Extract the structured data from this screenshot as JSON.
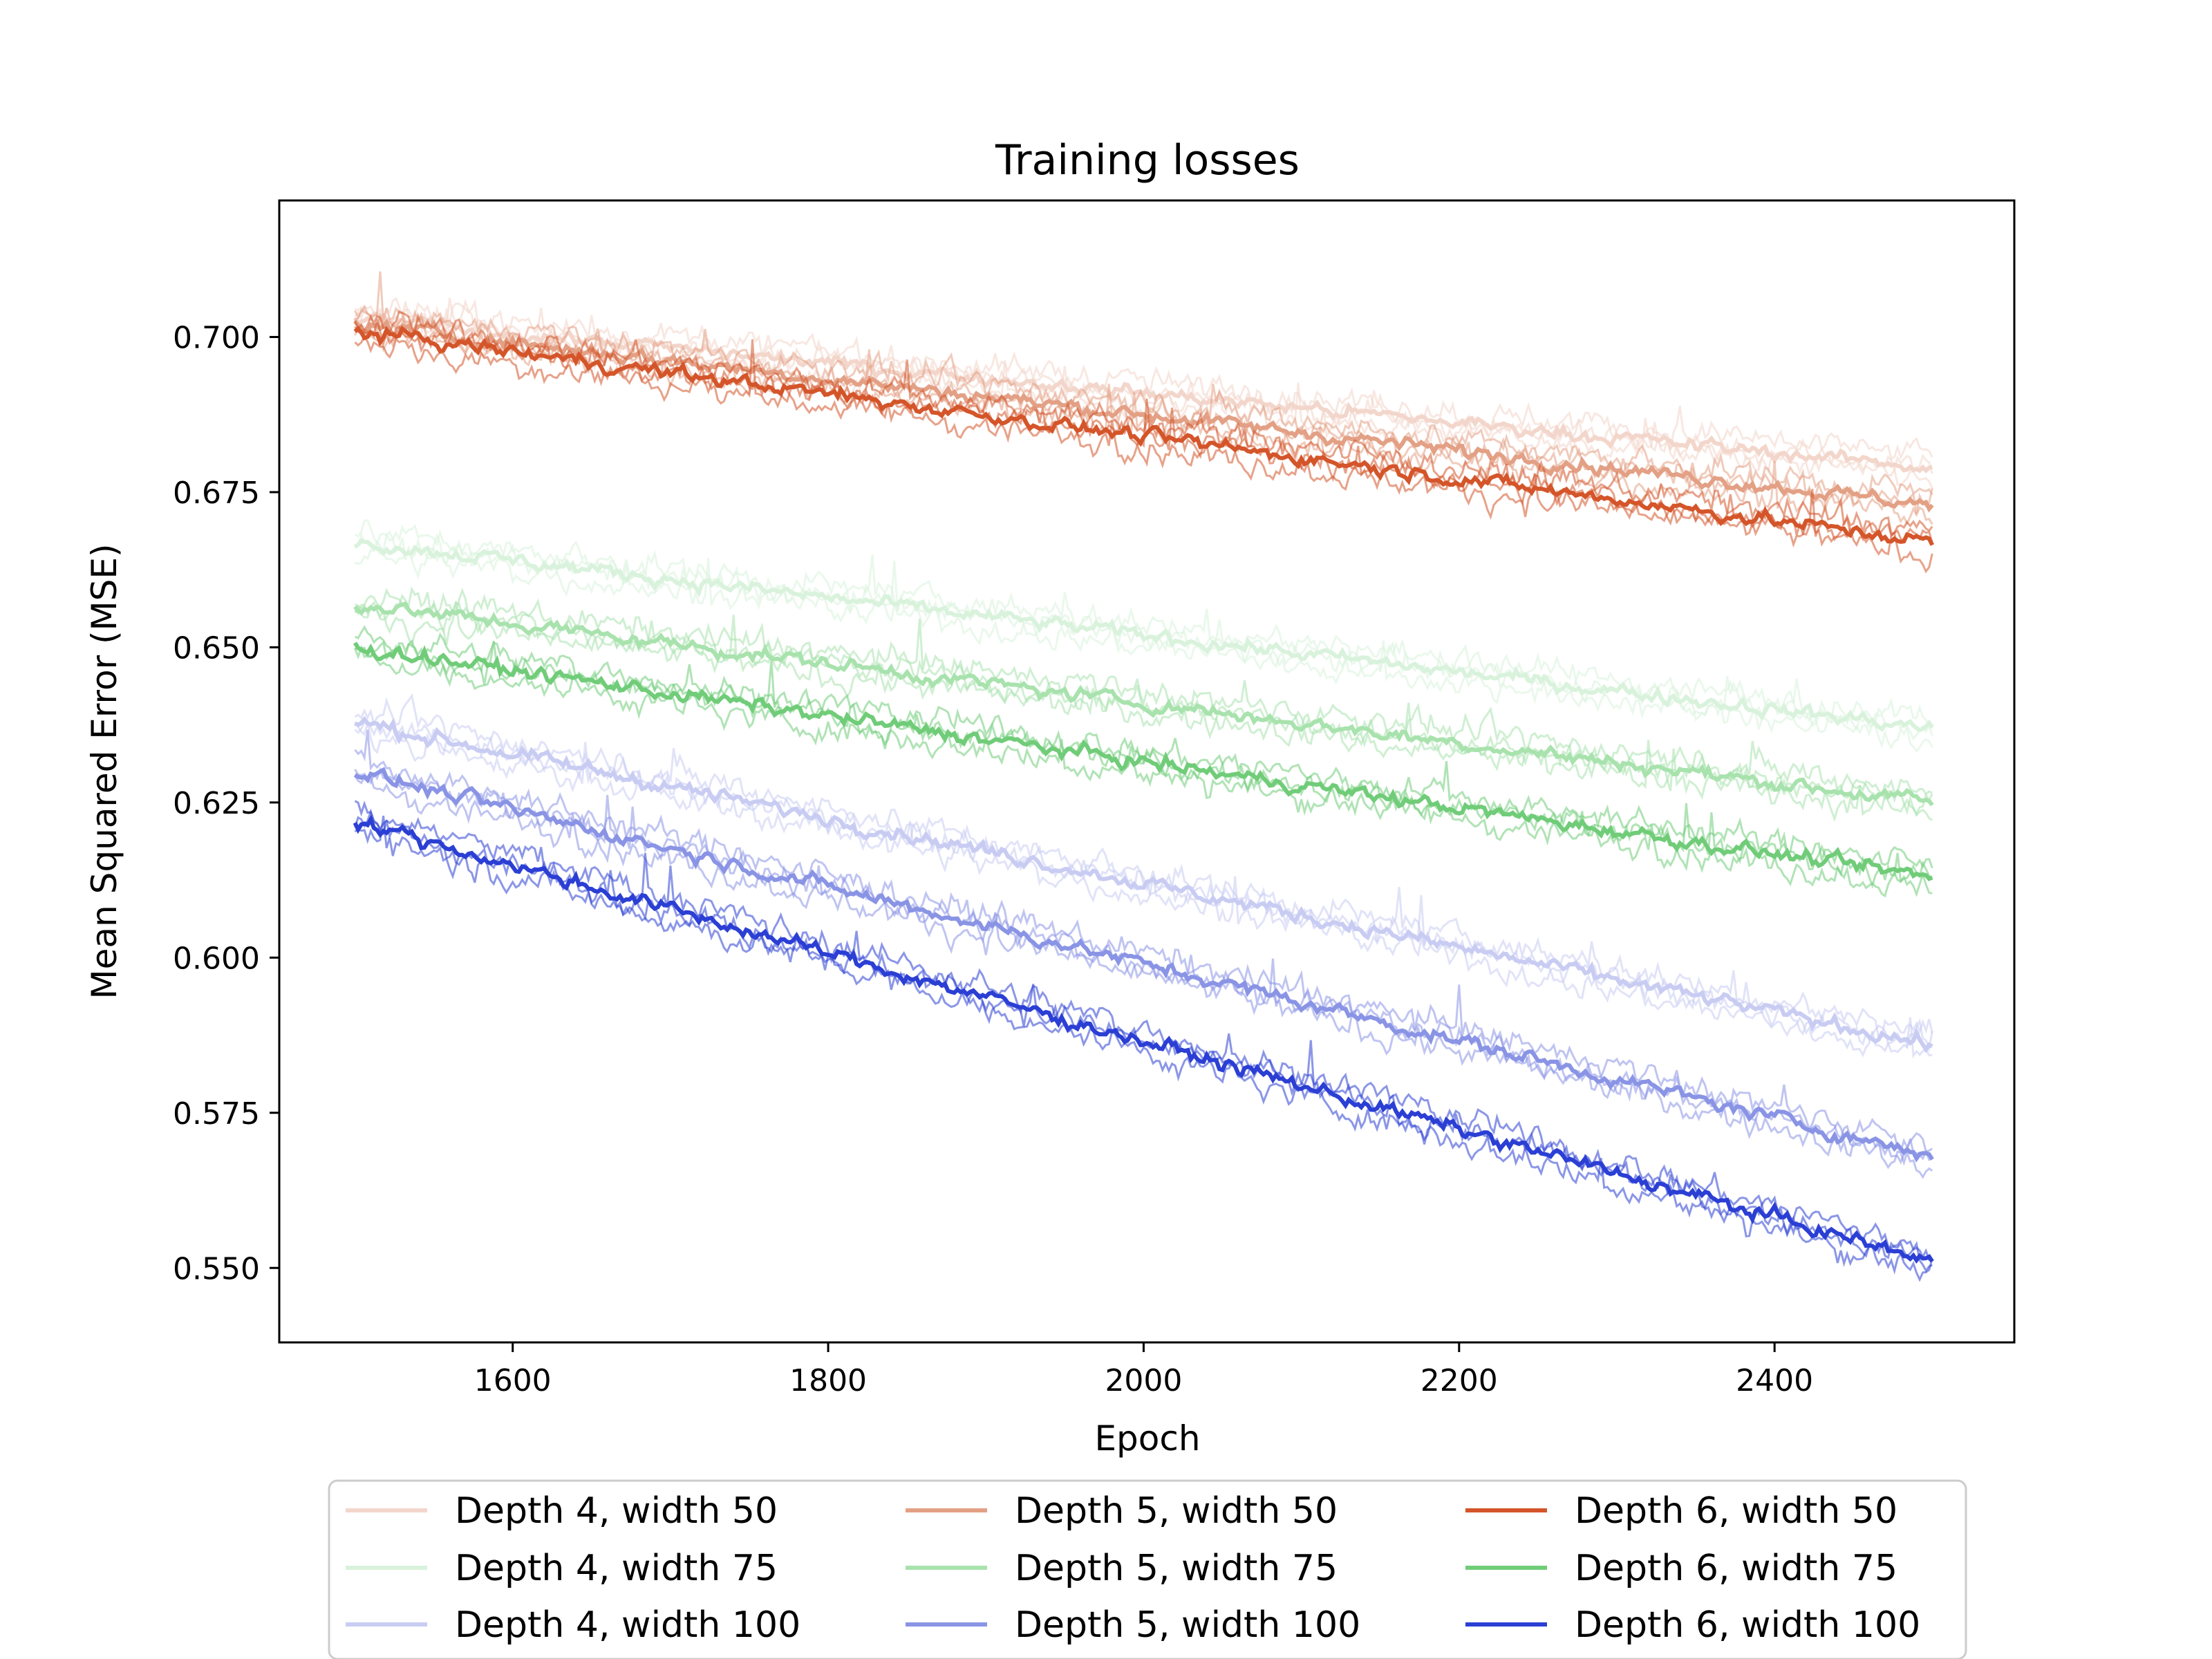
{
  "chart_data": {
    "type": "line",
    "title": "Training losses",
    "xlabel": "Epoch",
    "ylabel": "Mean Squared Error (MSE)",
    "xlim": [
      1452,
      2552
    ],
    "ylim": [
      0.538,
      0.722
    ],
    "xticks": [
      1600,
      1800,
      2000,
      2200,
      2400
    ],
    "yticks": [
      0.55,
      0.575,
      0.6,
      0.625,
      0.65,
      0.675,
      0.7
    ],
    "ytick_labels": [
      "0.550",
      "0.575",
      "0.600",
      "0.625",
      "0.650",
      "0.675",
      "0.700"
    ],
    "grid": false,
    "legend_placement": "below-center",
    "legend_columns": 3,
    "x_start": 1500,
    "x_end": 2500,
    "series": [
      {
        "name": "Depth 4, width 50",
        "color": "#f3d6cb",
        "start": 0.703,
        "end": 0.679
      },
      {
        "name": "Depth 4, width 75",
        "color": "#d9f2dc",
        "start": 0.667,
        "end": 0.637
      },
      {
        "name": "Depth 4, width 100",
        "color": "#c9ccf2",
        "start": 0.638,
        "end": 0.586
      },
      {
        "name": "Depth 5, width 50",
        "color": "#e3a085",
        "start": 0.702,
        "end": 0.673
      },
      {
        "name": "Depth 5, width 75",
        "color": "#a8e2ad",
        "start": 0.657,
        "end": 0.625
      },
      {
        "name": "Depth 5, width 100",
        "color": "#8a94e5",
        "start": 0.63,
        "end": 0.568
      },
      {
        "name": "Depth 6, width 50",
        "color": "#d4552a",
        "start": 0.701,
        "end": 0.667
      },
      {
        "name": "Depth 6, width 75",
        "color": "#70cc78",
        "start": 0.65,
        "end": 0.613
      },
      {
        "name": "Depth 6, width 100",
        "color": "#2b3fd4",
        "start": 0.622,
        "end": 0.551
      }
    ]
  }
}
